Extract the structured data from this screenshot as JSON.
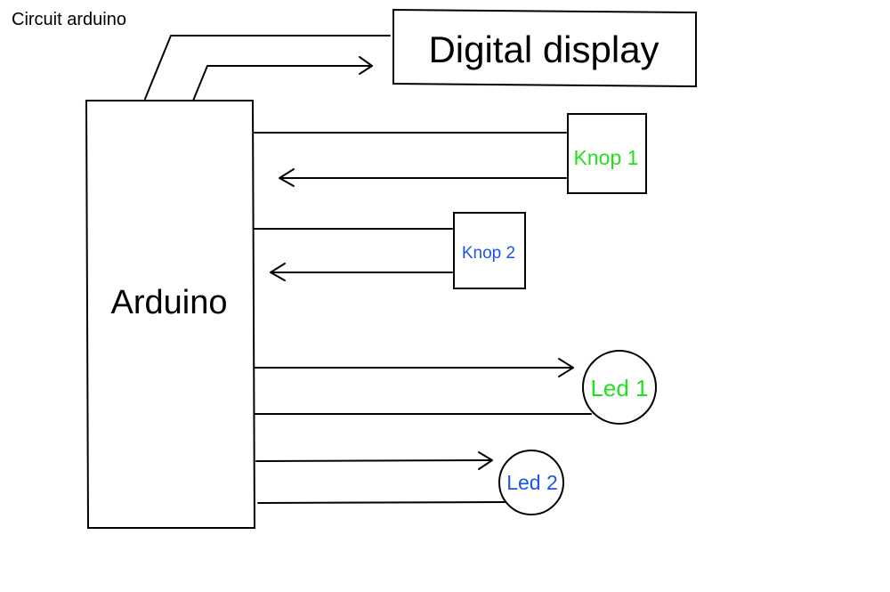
{
  "title": "Circuit arduino",
  "colors": {
    "stroke": "#000000",
    "background": "#ffffff",
    "green_label": "#22e01c",
    "blue_label": "#1a55e6",
    "black_label": "#000000"
  },
  "nodes": {
    "arduino": {
      "label": "Arduino"
    },
    "display": {
      "label": "Digital display"
    },
    "knop1": {
      "label": "Knop 1"
    },
    "knop2": {
      "label": "Knop 2"
    },
    "led1": {
      "label": "Led 1"
    },
    "led2": {
      "label": "Led 2"
    }
  }
}
